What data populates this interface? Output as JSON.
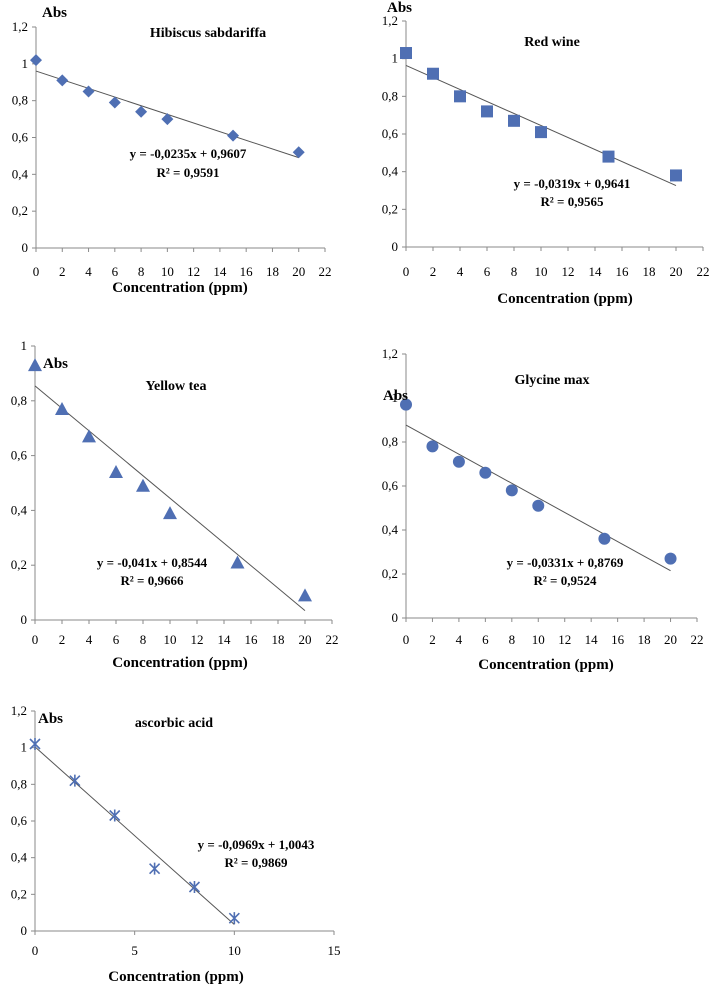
{
  "colors": {
    "marker": "#4f6fb3",
    "axis": "#8a8a8a",
    "trend": "#555555",
    "text": "#000000"
  },
  "chart_data": [
    {
      "type": "scatter",
      "title": "Hibiscus sabdariffa",
      "xlabel": "Concentration (ppm)",
      "ylabel": "Abs",
      "marker": "diamond",
      "xlim": [
        0,
        22
      ],
      "ylim": [
        0,
        1.2
      ],
      "x_ticks": [
        "0",
        "2",
        "4",
        "6",
        "8",
        "10",
        "12",
        "14",
        "16",
        "18",
        "20",
        "22"
      ],
      "y_ticks": [
        "0",
        "0,2",
        "0,4",
        "0,6",
        "0,8",
        "1",
        "1,2"
      ],
      "x": [
        0,
        2,
        4,
        6,
        8,
        10,
        15,
        20
      ],
      "y": [
        1.02,
        0.91,
        0.85,
        0.79,
        0.74,
        0.7,
        0.61,
        0.52
      ],
      "trendline": {
        "slope": -0.0235,
        "intercept": 0.9607,
        "x_range": [
          0,
          20
        ]
      },
      "equation": "y = -0,0235x + 0,9607",
      "r2": "R² = 0,9591"
    },
    {
      "type": "scatter",
      "title": "Red wine",
      "xlabel": "Concentration (ppm)",
      "ylabel": "Abs",
      "marker": "square",
      "xlim": [
        0,
        22
      ],
      "ylim": [
        0,
        1.2
      ],
      "x_ticks": [
        "0",
        "2",
        "4",
        "6",
        "8",
        "10",
        "12",
        "14",
        "16",
        "18",
        "20",
        "22"
      ],
      "y_ticks": [
        "0",
        "0,2",
        "0,4",
        "0,6",
        "0,8",
        "1",
        "1,2"
      ],
      "x": [
        0,
        2,
        4,
        6,
        8,
        10,
        15,
        20
      ],
      "y": [
        1.03,
        0.92,
        0.8,
        0.72,
        0.67,
        0.61,
        0.48,
        0.38
      ],
      "trendline": {
        "slope": -0.0319,
        "intercept": 0.9641,
        "x_range": [
          0,
          20
        ]
      },
      "equation": "y = -0,0319x + 0,9641",
      "r2": "R² = 0,9565"
    },
    {
      "type": "scatter",
      "title": "Yellow tea",
      "xlabel": "Concentration (ppm)",
      "ylabel": "Abs",
      "marker": "triangle",
      "xlim": [
        0,
        22
      ],
      "ylim": [
        0,
        1
      ],
      "x_ticks": [
        "0",
        "2",
        "4",
        "6",
        "8",
        "10",
        "12",
        "14",
        "16",
        "18",
        "20",
        "22"
      ],
      "y_ticks": [
        "0",
        "0,2",
        "0,4",
        "0,6",
        "0,8",
        "1"
      ],
      "x": [
        0,
        2,
        4,
        6,
        8,
        10,
        15,
        20
      ],
      "y": [
        0.93,
        0.77,
        0.67,
        0.54,
        0.49,
        0.39,
        0.21,
        0.09
      ],
      "trendline": {
        "slope": -0.041,
        "intercept": 0.8544,
        "x_range": [
          0,
          20
        ]
      },
      "equation": "y = -0,041x + 0,8544",
      "r2": "R² = 0,9666"
    },
    {
      "type": "scatter",
      "title": "Glycine max",
      "xlabel": "Concentration (ppm)",
      "ylabel": "Abs",
      "marker": "circle",
      "xlim": [
        0,
        22
      ],
      "ylim": [
        0,
        1.2
      ],
      "x_ticks": [
        "0",
        "2",
        "4",
        "6",
        "8",
        "10",
        "12",
        "14",
        "16",
        "18",
        "20",
        "22"
      ],
      "y_ticks": [
        "0",
        "0,2",
        "0,4",
        "0,6",
        "0,8",
        "1",
        "1,2"
      ],
      "x": [
        0,
        2,
        4,
        6,
        8,
        10,
        15,
        20
      ],
      "y": [
        0.97,
        0.78,
        0.71,
        0.66,
        0.58,
        0.51,
        0.36,
        0.27
      ],
      "trendline": {
        "slope": -0.0331,
        "intercept": 0.8769,
        "x_range": [
          0,
          20
        ]
      },
      "equation": "y = -0,0331x + 0,8769",
      "r2": "R² = 0,9524"
    },
    {
      "type": "scatter",
      "title": "ascorbic acid",
      "xlabel": "Concentration (ppm)",
      "ylabel": "Abs",
      "marker": "star",
      "xlim": [
        0,
        15
      ],
      "ylim": [
        0,
        1.2
      ],
      "x_ticks": [
        "0",
        "5",
        "10",
        "15"
      ],
      "y_ticks": [
        "0",
        "0,2",
        "0,4",
        "0,6",
        "0,8",
        "1",
        "1,2"
      ],
      "x": [
        0,
        2,
        4,
        6,
        8,
        10
      ],
      "y": [
        1.02,
        0.82,
        0.63,
        0.34,
        0.24,
        0.07
      ],
      "trendline": {
        "slope": -0.0969,
        "intercept": 1.0043,
        "x_range": [
          0,
          10
        ]
      },
      "equation": "y = -0,0969x + 1,0043",
      "r2": "R² = 0,9869"
    }
  ]
}
